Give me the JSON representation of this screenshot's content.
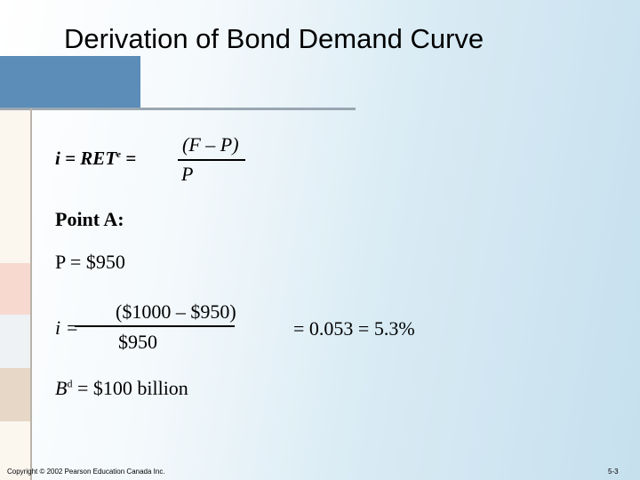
{
  "title": "Derivation of Bond Demand Curve",
  "formula": {
    "lhs": "i = RET",
    "superscript": "e",
    "equals": "=",
    "numerator": "(F – P)",
    "denominator": "P"
  },
  "point_label": "Point A:",
  "price_line": "P = $950",
  "calculation": {
    "lhs": "i =",
    "numerator": "($1000 – $950)",
    "denominator": "$950",
    "result": "= 0.053 = 5.3%"
  },
  "demand": {
    "symbol": "B",
    "superscript": "d",
    "value": "= $100 billion"
  },
  "footer": {
    "copyright": "Copyright © 2002 Pearson Education Canada Inc.",
    "page": "5-3"
  }
}
